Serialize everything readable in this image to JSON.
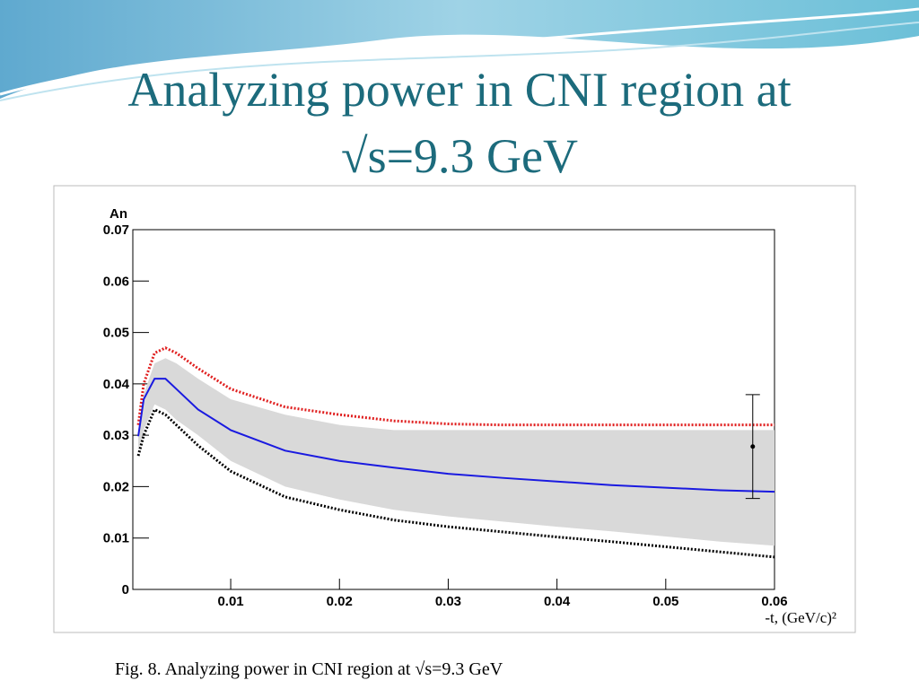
{
  "slide": {
    "title": "Analyzing power in CNI region at √s=9.3 GeV",
    "caption": "Fig. 8. Analyzing power in CNI region at √s=9.3 GeV"
  },
  "chart_data": {
    "type": "line",
    "y_label": "An",
    "x_label": "-t, (GeV/c)²",
    "xlim": [
      0.001,
      0.06
    ],
    "ylim": [
      0,
      0.07
    ],
    "xticks": [
      0.01,
      0.02,
      0.03,
      0.04,
      0.05,
      0.06
    ],
    "yticks": [
      0,
      0.01,
      0.02,
      0.03,
      0.04,
      0.05,
      0.06,
      0.07
    ],
    "x": [
      0.0015,
      0.002,
      0.003,
      0.004,
      0.005,
      0.007,
      0.01,
      0.015,
      0.02,
      0.025,
      0.03,
      0.035,
      0.04,
      0.045,
      0.05,
      0.055,
      0.06
    ],
    "band": {
      "color": "#d9d9d9",
      "upper": [
        0.031,
        0.038,
        0.044,
        0.045,
        0.044,
        0.041,
        0.037,
        0.034,
        0.032,
        0.031,
        0.031,
        0.031,
        0.031,
        0.031,
        0.031,
        0.031,
        0.031
      ],
      "lower": [
        0.027,
        0.031,
        0.036,
        0.035,
        0.033,
        0.03,
        0.025,
        0.02,
        0.0175,
        0.0155,
        0.0142,
        0.0132,
        0.0122,
        0.0113,
        0.0103,
        0.0093,
        0.0085
      ]
    },
    "lines": [
      {
        "color": "#e02020",
        "style": "dotted",
        "values": [
          0.032,
          0.04,
          0.046,
          0.047,
          0.046,
          0.043,
          0.039,
          0.0355,
          0.034,
          0.0328,
          0.0322,
          0.032,
          0.032,
          0.032,
          0.032,
          0.032,
          0.032
        ]
      },
      {
        "color": "#1a1ae0",
        "style": "solid",
        "values": [
          0.0298,
          0.037,
          0.041,
          0.041,
          0.039,
          0.035,
          0.031,
          0.027,
          0.025,
          0.0237,
          0.0225,
          0.0217,
          0.021,
          0.0203,
          0.0198,
          0.0193,
          0.019
        ]
      },
      {
        "color": "#000000",
        "style": "dotted",
        "values": [
          0.026,
          0.03,
          0.035,
          0.034,
          0.032,
          0.028,
          0.023,
          0.018,
          0.0155,
          0.0135,
          0.0122,
          0.0112,
          0.0102,
          0.0093,
          0.0083,
          0.0073,
          0.0063
        ]
      }
    ],
    "point": {
      "x": 0.058,
      "y": 0.0278,
      "error": 0.0101,
      "color": "#000000"
    }
  }
}
